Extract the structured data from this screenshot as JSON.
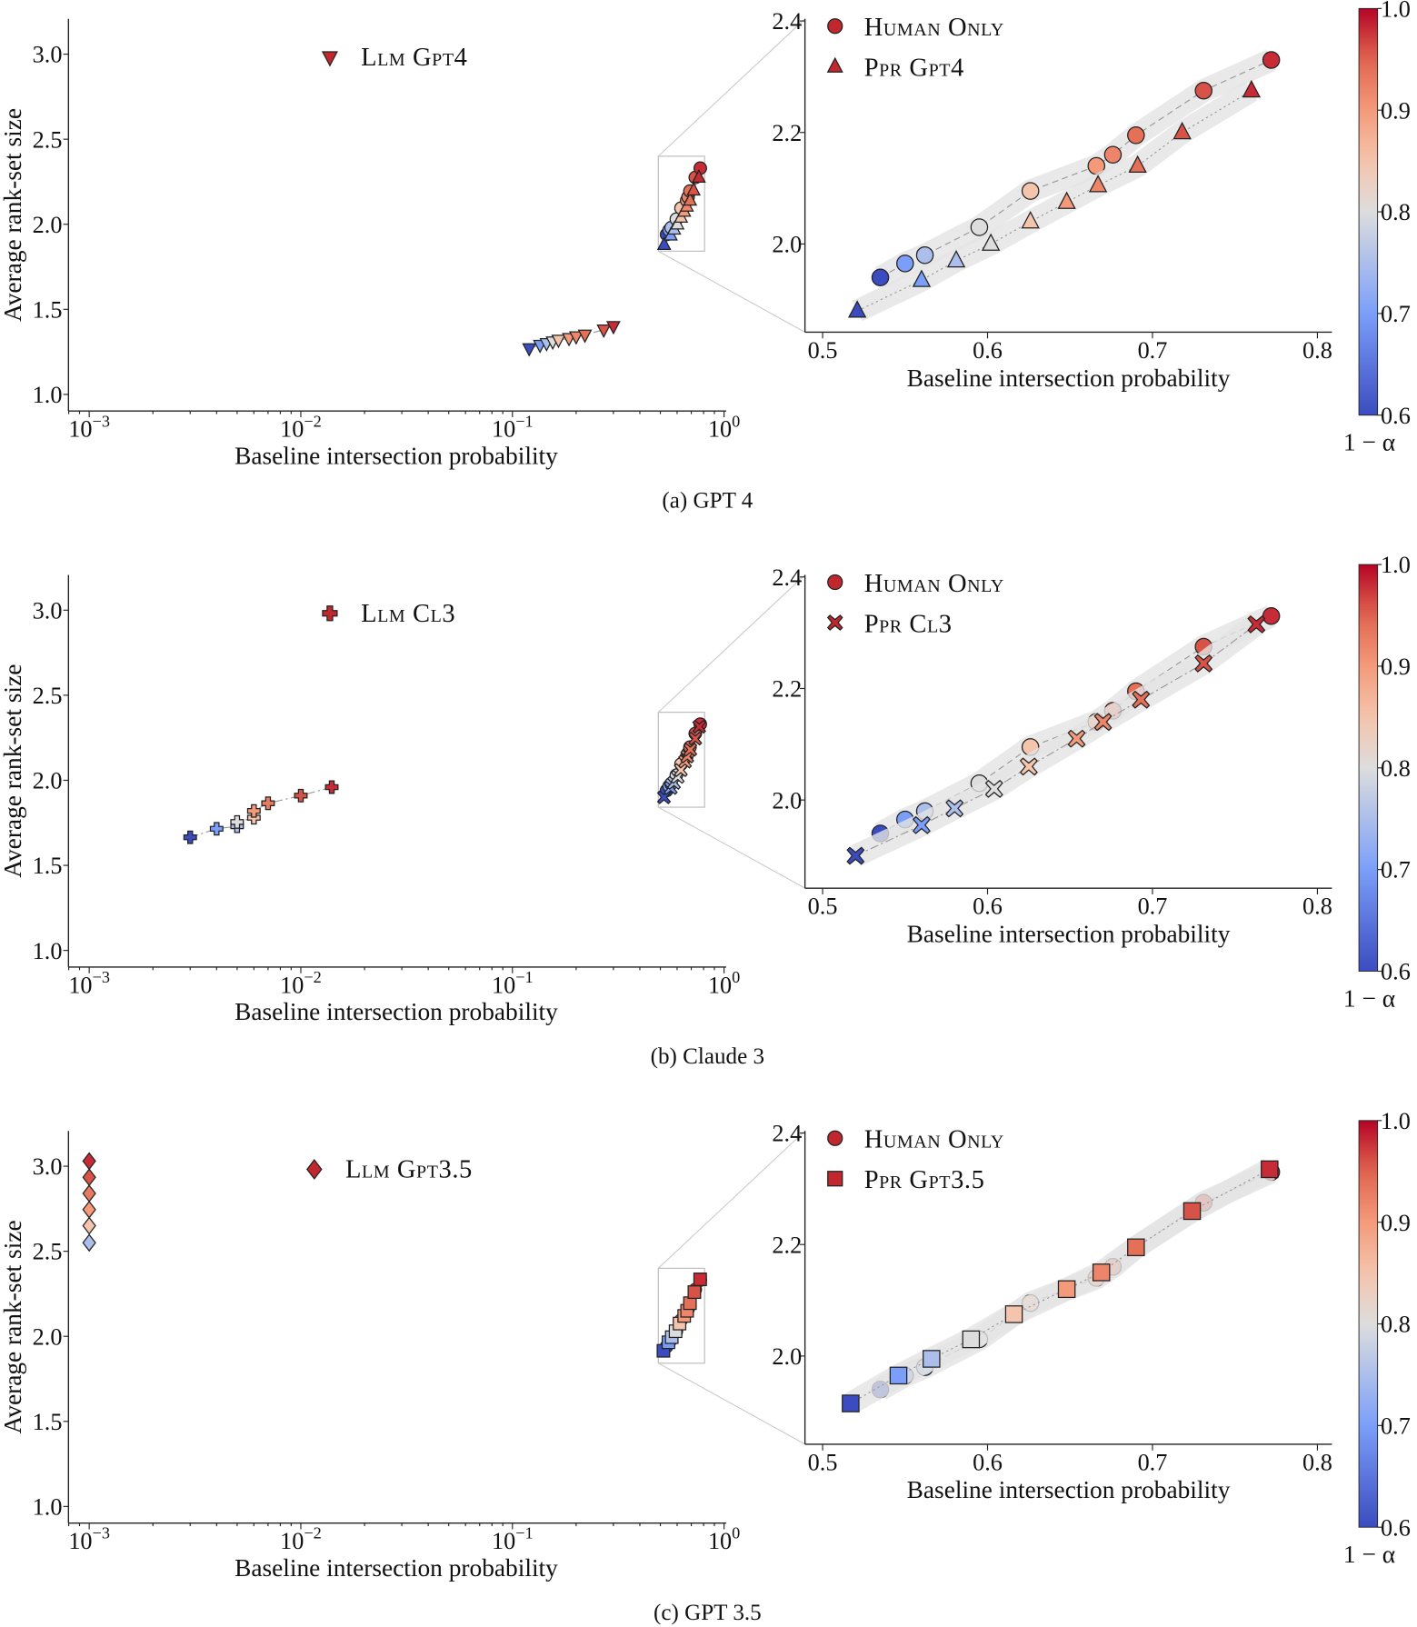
{
  "colorbar": {
    "label": "1 − α",
    "colormap": "coolwarm",
    "range": [
      0.6,
      1.0
    ],
    "ticks": [
      "0.6",
      "0.7",
      "0.8",
      "0.9",
      "1.0"
    ],
    "stops": [
      "#3b4cc0",
      "#7b9ff9",
      "#dddddd",
      "#f5c4ac",
      "#f49a7b",
      "#e0654f",
      "#b40426"
    ]
  },
  "chart_data": [
    {
      "caption": "(a) GPT 4",
      "main": {
        "type": "scatter",
        "xscale": "log",
        "xlabel": "Baseline intersection probability",
        "ylabel": "Average rank-set size",
        "xlim": [
          0.0008,
          1.0
        ],
        "ylim": [
          0.9,
          3.2
        ],
        "xticks": [
          "10^−3",
          "10^−2",
          "10^−1",
          "10^0"
        ],
        "yticks": [
          "1.0",
          "1.5",
          "2.0",
          "2.5",
          "3.0"
        ],
        "legend": [
          "Llm Gpt4"
        ]
      },
      "zoom": {
        "type": "scatter",
        "xlabel": "Baseline intersection probability",
        "xlim": [
          0.489,
          0.809
        ],
        "ylim": [
          1.842,
          2.4
        ],
        "xticks": [
          "0.5",
          "0.6",
          "0.7",
          "0.8"
        ],
        "yticks": [
          "2.0",
          "2.2",
          "2.4"
        ],
        "legend": [
          "Human Only",
          "Ppr Gpt4"
        ]
      },
      "series": [
        {
          "name": "Human Only",
          "marker": "circle",
          "line": "dashed",
          "x": [
            0.535,
            0.55,
            0.562,
            0.595,
            0.626,
            0.666,
            0.676,
            0.69,
            0.731,
            0.772
          ],
          "y": [
            1.94,
            1.965,
            1.98,
            2.03,
            2.095,
            2.14,
            2.16,
            2.195,
            2.275,
            2.33
          ],
          "level": [
            0.6,
            0.7,
            0.75,
            0.8,
            0.85,
            0.9,
            0.92,
            0.94,
            0.96,
            0.98
          ]
        },
        {
          "name": "Ppr Gpt4",
          "marker": "triangle-up",
          "line": "dotted",
          "x": [
            0.521,
            0.56,
            0.581,
            0.602,
            0.626,
            0.648,
            0.667,
            0.691,
            0.718,
            0.76
          ],
          "y": [
            1.88,
            1.935,
            1.97,
            2.0,
            2.04,
            2.075,
            2.105,
            2.14,
            2.2,
            2.275
          ],
          "level": [
            0.6,
            0.7,
            0.75,
            0.8,
            0.85,
            0.9,
            0.92,
            0.94,
            0.96,
            0.98
          ]
        },
        {
          "name": "Llm Gpt4",
          "marker": "triangle-down",
          "line": "dashdot",
          "main_only": true,
          "x": [
            0.12,
            0.135,
            0.145,
            0.155,
            0.165,
            0.185,
            0.2,
            0.22,
            0.27,
            0.3
          ],
          "y": [
            1.27,
            1.29,
            1.3,
            1.31,
            1.32,
            1.33,
            1.34,
            1.35,
            1.38,
            1.4
          ],
          "level": [
            0.6,
            0.7,
            0.75,
            0.8,
            0.85,
            0.9,
            0.92,
            0.94,
            0.96,
            0.98
          ]
        }
      ]
    },
    {
      "caption": "(b) Claude 3",
      "main": {
        "type": "scatter",
        "xscale": "log",
        "xlabel": "Baseline intersection probability",
        "ylabel": "Average rank-set size",
        "xlim": [
          0.0008,
          1.0
        ],
        "ylim": [
          0.9,
          3.2
        ],
        "xticks": [
          "10^−3",
          "10^−2",
          "10^−1",
          "10^0"
        ],
        "yticks": [
          "1.0",
          "1.5",
          "2.0",
          "2.5",
          "3.0"
        ],
        "legend": [
          "Llm Cl3"
        ]
      },
      "zoom": {
        "type": "scatter",
        "xlabel": "Baseline intersection probability",
        "xlim": [
          0.489,
          0.809
        ],
        "ylim": [
          1.842,
          2.4
        ],
        "xticks": [
          "0.5",
          "0.6",
          "0.7",
          "0.8"
        ],
        "yticks": [
          "2.0",
          "2.2",
          "2.4"
        ],
        "legend": [
          "Human Only",
          "Ppr Cl3"
        ]
      },
      "series": [
        {
          "name": "Human Only",
          "marker": "circle",
          "line": "dashed",
          "x": [
            0.535,
            0.55,
            0.562,
            0.595,
            0.626,
            0.666,
            0.676,
            0.69,
            0.731,
            0.772
          ],
          "y": [
            1.94,
            1.965,
            1.98,
            2.03,
            2.095,
            2.14,
            2.16,
            2.195,
            2.275,
            2.33
          ],
          "level": [
            0.6,
            0.7,
            0.75,
            0.8,
            0.85,
            0.9,
            0.92,
            0.94,
            0.96,
            0.98
          ]
        },
        {
          "name": "Ppr Cl3",
          "marker": "x",
          "line": "dashdot",
          "x": [
            0.52,
            0.56,
            0.58,
            0.604,
            0.625,
            0.654,
            0.67,
            0.693,
            0.731,
            0.763
          ],
          "y": [
            1.9,
            1.955,
            1.985,
            2.02,
            2.06,
            2.11,
            2.14,
            2.18,
            2.245,
            2.315
          ],
          "level": [
            0.6,
            0.7,
            0.75,
            0.8,
            0.85,
            0.9,
            0.92,
            0.94,
            0.96,
            0.98
          ]
        },
        {
          "name": "Llm Cl3",
          "marker": "plus",
          "line": "dashdot",
          "main_only": true,
          "x": [
            0.003,
            0.004,
            0.005,
            0.005,
            0.006,
            0.006,
            0.007,
            0.01,
            0.014
          ],
          "y": [
            1.665,
            1.715,
            1.73,
            1.755,
            1.78,
            1.82,
            1.865,
            1.91,
            1.96
          ],
          "level": [
            0.6,
            0.7,
            0.75,
            0.8,
            0.85,
            0.9,
            0.93,
            0.96,
            0.98
          ]
        }
      ]
    },
    {
      "caption": "(c) GPT 3.5",
      "main": {
        "type": "scatter",
        "xscale": "log",
        "xlabel": "Baseline intersection probability",
        "ylabel": "Average rank-set size",
        "xlim": [
          0.0008,
          1.0
        ],
        "ylim": [
          0.9,
          3.2
        ],
        "xticks": [
          "10^−3",
          "10^−2",
          "10^−1",
          "10^0"
        ],
        "yticks": [
          "1.0",
          "1.5",
          "2.0",
          "2.5",
          "3.0"
        ],
        "legend": [
          "Llm Gpt3.5"
        ]
      },
      "zoom": {
        "type": "scatter",
        "xlabel": "Baseline intersection probability",
        "xlim": [
          0.489,
          0.809
        ],
        "ylim": [
          1.842,
          2.4
        ],
        "xticks": [
          "0.5",
          "0.6",
          "0.7",
          "0.8"
        ],
        "yticks": [
          "2.0",
          "2.2",
          "2.4"
        ],
        "legend": [
          "Human Only",
          "Ppr Gpt3.5"
        ]
      },
      "series": [
        {
          "name": "Human Only",
          "marker": "circle",
          "line": "dashed",
          "x": [
            0.535,
            0.55,
            0.562,
            0.595,
            0.626,
            0.666,
            0.676,
            0.69,
            0.731,
            0.772
          ],
          "y": [
            1.94,
            1.965,
            1.98,
            2.03,
            2.095,
            2.14,
            2.16,
            2.195,
            2.275,
            2.33
          ],
          "level": [
            0.6,
            0.7,
            0.75,
            0.8,
            0.85,
            0.9,
            0.92,
            0.94,
            0.96,
            0.98
          ]
        },
        {
          "name": "Ppr Gpt3.5",
          "marker": "square",
          "line": "dotted",
          "x": [
            0.517,
            0.546,
            0.566,
            0.59,
            0.616,
            0.648,
            0.669,
            0.69,
            0.724,
            0.771
          ],
          "y": [
            1.915,
            1.965,
            1.995,
            2.03,
            2.075,
            2.12,
            2.15,
            2.195,
            2.26,
            2.335
          ],
          "level": [
            0.6,
            0.7,
            0.75,
            0.8,
            0.85,
            0.9,
            0.92,
            0.94,
            0.96,
            0.98
          ]
        },
        {
          "name": "Llm Gpt3.5",
          "marker": "diamond",
          "line": "none",
          "main_only": true,
          "x": [
            0.001,
            0.001,
            0.001,
            0.001,
            0.001,
            0.001
          ],
          "y": [
            2.55,
            2.65,
            2.745,
            2.84,
            2.935,
            3.03
          ],
          "level": [
            0.75,
            0.85,
            0.9,
            0.93,
            0.96,
            0.98
          ]
        }
      ]
    }
  ]
}
